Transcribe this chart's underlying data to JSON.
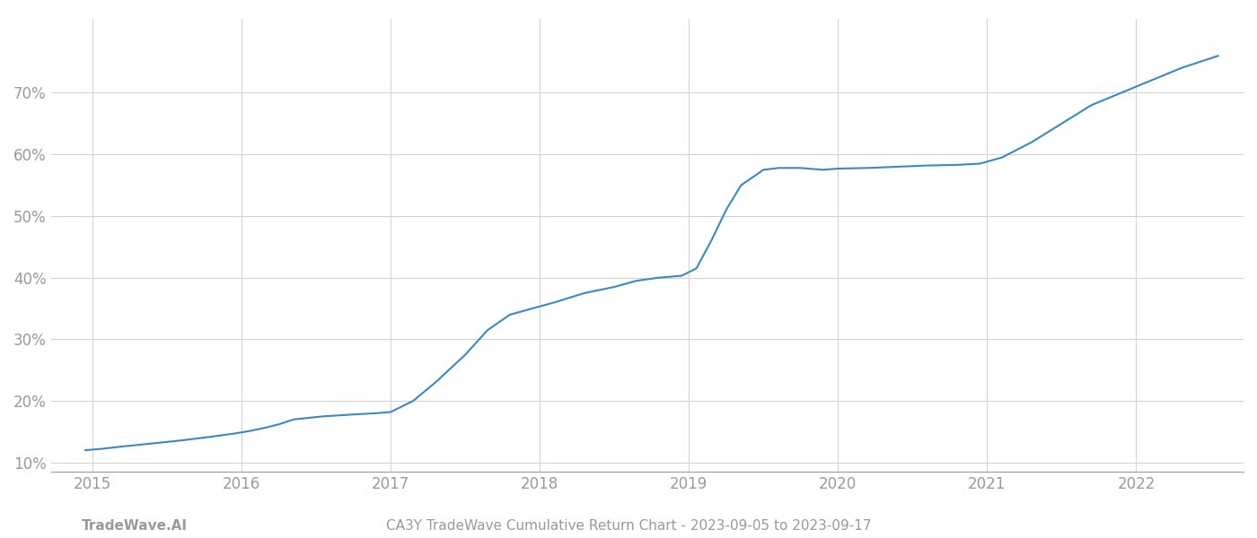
{
  "title": "CA3Y TradeWave Cumulative Return Chart - 2023-09-05 to 2023-09-17",
  "watermark": "TradeWave.AI",
  "line_color": "#3a8abf",
  "background_color": "#ffffff",
  "grid_color": "#d0d0d0",
  "x_values": [
    2014.95,
    2015.05,
    2015.2,
    2015.4,
    2015.6,
    2015.8,
    2015.95,
    2016.05,
    2016.15,
    2016.25,
    2016.35,
    2016.55,
    2016.75,
    2016.9,
    2017.0,
    2017.15,
    2017.3,
    2017.5,
    2017.65,
    2017.8,
    2017.95,
    2018.1,
    2018.3,
    2018.5,
    2018.65,
    2018.8,
    2018.95,
    2019.05,
    2019.15,
    2019.25,
    2019.35,
    2019.5,
    2019.6,
    2019.75,
    2019.9,
    2020.0,
    2020.2,
    2020.4,
    2020.6,
    2020.8,
    2020.95,
    2021.1,
    2021.3,
    2021.5,
    2021.7,
    2021.9,
    2022.05,
    2022.3,
    2022.55
  ],
  "y_values": [
    12.0,
    12.2,
    12.6,
    13.1,
    13.6,
    14.2,
    14.7,
    15.1,
    15.6,
    16.2,
    17.0,
    17.5,
    17.8,
    18.0,
    18.2,
    20.0,
    23.0,
    27.5,
    31.5,
    34.0,
    35.0,
    36.0,
    37.5,
    38.5,
    39.5,
    40.0,
    40.3,
    41.5,
    46.0,
    51.0,
    55.0,
    57.5,
    57.8,
    57.8,
    57.5,
    57.7,
    57.8,
    58.0,
    58.2,
    58.3,
    58.5,
    59.5,
    62.0,
    65.0,
    68.0,
    70.0,
    71.5,
    74.0,
    76.0
  ],
  "xlim": [
    2014.72,
    2022.72
  ],
  "ylim": [
    8.5,
    82
  ],
  "yticks": [
    10,
    20,
    30,
    40,
    50,
    60,
    70
  ],
  "xticks": [
    2015,
    2016,
    2017,
    2018,
    2019,
    2020,
    2021,
    2022
  ],
  "line_width": 1.5,
  "title_fontsize": 11,
  "watermark_fontsize": 11,
  "tick_fontsize": 12,
  "tick_color": "#999999",
  "spine_color": "#999999"
}
